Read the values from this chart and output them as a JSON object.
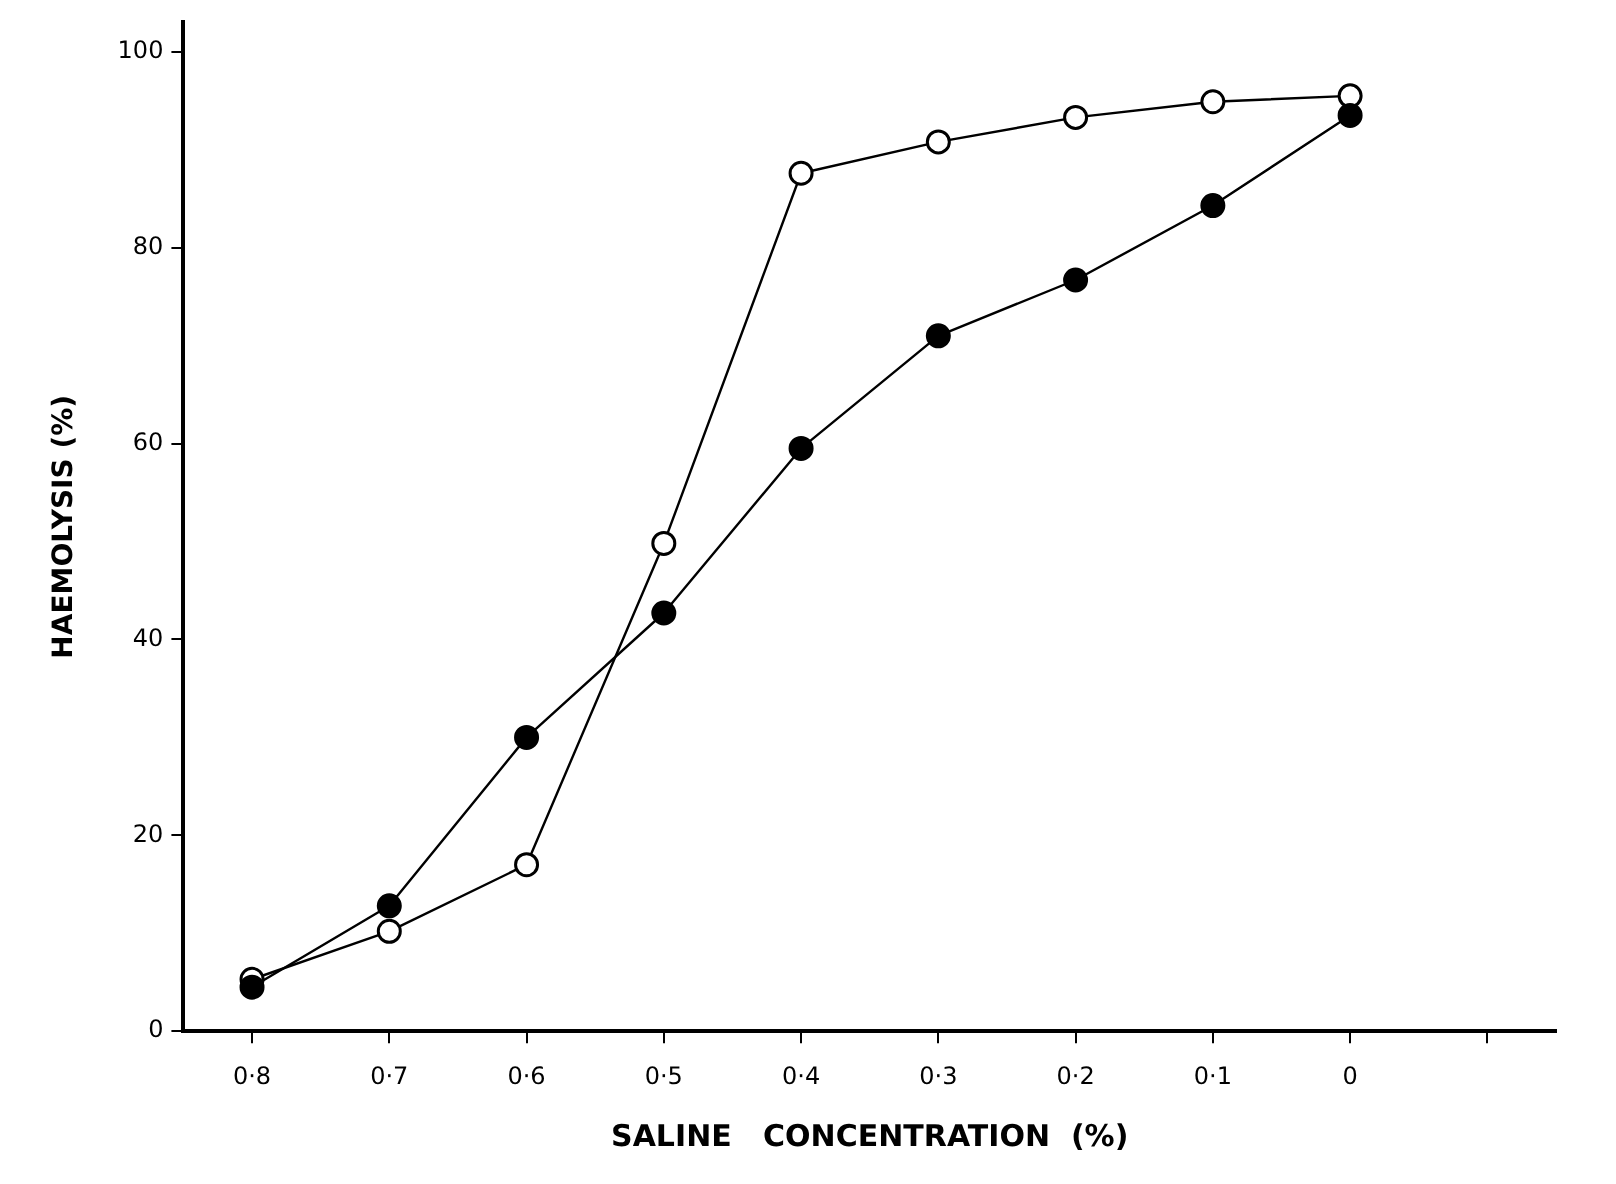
{
  "chart_data": {
    "type": "line",
    "xlabel": "SALINE   CONCENTRATION  (%)",
    "ylabel": "HAEMOLYSIS (%)",
    "categories": [
      "0·8",
      "0·7",
      "0·6",
      "0·5",
      "0·4",
      "0·3",
      "0·2",
      "0·1",
      "0",
      null
    ],
    "series": [
      {
        "color": "#000000",
        "values": [
          4.5,
          12.8,
          30,
          42.7,
          59.5,
          71,
          76.7,
          84.3,
          93.5,
          null
        ]
      },
      {
        "color": "#000000",
        "values": [
          5.3,
          10.2,
          17,
          49.8,
          87.6,
          90.8,
          93.3,
          94.9,
          95.5,
          null
        ]
      }
    ],
    "ylim": [
      0,
      103
    ],
    "yticks": [
      0,
      20,
      40,
      60,
      80,
      100
    ],
    "grid": false,
    "legend": false,
    "marker": "circle",
    "line_style": "solid"
  }
}
